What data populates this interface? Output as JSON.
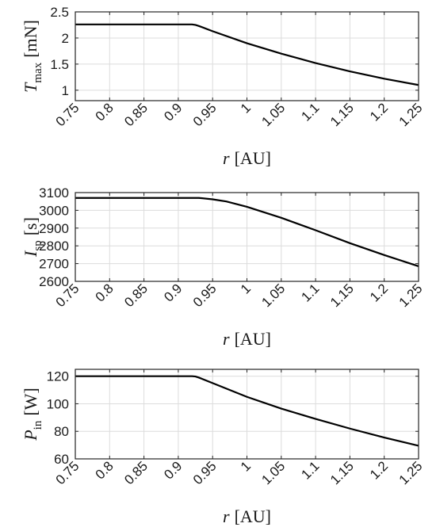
{
  "chart_data": [
    {
      "type": "line",
      "ylabel": {
        "symbol": "T",
        "subscript": "max",
        "unit": "[mN]"
      },
      "xlabel": {
        "symbol": "r",
        "unit": "[AU]"
      },
      "xlim": [
        0.75,
        1.25
      ],
      "ylim": [
        0.8,
        2.5
      ],
      "xticks": [
        "0.75",
        "0.8",
        "0.85",
        "0.9",
        "0.95",
        "1",
        "1.05",
        "1.1",
        "1.15",
        "1.2",
        "1.25"
      ],
      "yticks": [
        "1",
        "1.5",
        "2",
        "2.5"
      ],
      "grid": true,
      "x": [
        0.75,
        0.9,
        0.92,
        0.925,
        0.93,
        0.95,
        1.0,
        1.05,
        1.1,
        1.15,
        1.2,
        1.25
      ],
      "y": [
        2.26,
        2.26,
        2.26,
        2.25,
        2.23,
        2.13,
        1.9,
        1.7,
        1.52,
        1.36,
        1.22,
        1.1
      ]
    },
    {
      "type": "line",
      "ylabel": {
        "symbol": "I",
        "subscript": "sp",
        "unit": "[s]"
      },
      "xlabel": {
        "symbol": "r",
        "unit": "[AU]"
      },
      "xlim": [
        0.75,
        1.25
      ],
      "ylim": [
        2600,
        3100
      ],
      "xticks": [
        "0.75",
        "0.8",
        "0.85",
        "0.9",
        "0.95",
        "1",
        "1.05",
        "1.1",
        "1.15",
        "1.2",
        "1.25"
      ],
      "yticks": [
        "2600",
        "2700",
        "2800",
        "2900",
        "3000",
        "3100"
      ],
      "grid": true,
      "x": [
        0.75,
        0.9,
        0.93,
        0.95,
        0.97,
        1.0,
        1.05,
        1.1,
        1.15,
        1.2,
        1.25
      ],
      "y": [
        3070,
        3070,
        3070,
        3062,
        3050,
        3020,
        2958,
        2888,
        2815,
        2748,
        2685
      ]
    },
    {
      "type": "line",
      "ylabel": {
        "symbol": "P",
        "subscript": "in",
        "unit": "[W]"
      },
      "xlabel": {
        "symbol": "r",
        "unit": "[AU]"
      },
      "xlim": [
        0.75,
        1.25
      ],
      "ylim": [
        60,
        125
      ],
      "xticks": [
        "0.75",
        "0.8",
        "0.85",
        "0.9",
        "0.95",
        "1",
        "1.05",
        "1.1",
        "1.15",
        "1.2",
        "1.25"
      ],
      "yticks": [
        "60",
        "80",
        "100",
        "120"
      ],
      "grid": true,
      "x": [
        0.75,
        0.9,
        0.92,
        0.925,
        0.93,
        0.95,
        1.0,
        1.05,
        1.1,
        1.15,
        1.2,
        1.25
      ],
      "y": [
        120,
        120,
        120,
        119.8,
        119,
        115,
        105,
        96.5,
        89,
        82,
        75.5,
        69.5
      ]
    }
  ]
}
